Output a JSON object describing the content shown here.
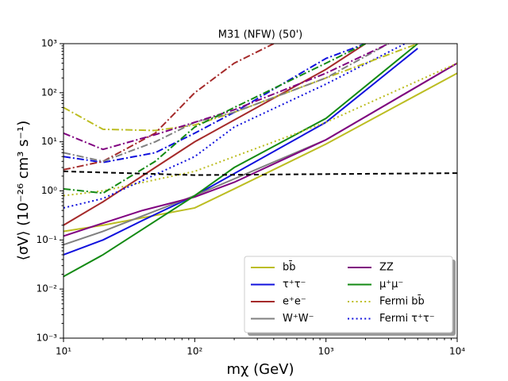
{
  "chart_data": {
    "type": "line",
    "title": "M31 (NFW) (50')",
    "x_label": "mχ (GeV)",
    "y_label": "⟨σV⟩ (10⁻²⁶ cm³ s⁻¹)",
    "xscale": "log",
    "yscale": "log",
    "xlim": [
      10,
      10000
    ],
    "ylim": [
      0.001,
      1000
    ],
    "xticks": [
      {
        "value": 10,
        "label": "10¹"
      },
      {
        "value": 100,
        "label": "10²"
      },
      {
        "value": 1000,
        "label": "10³"
      },
      {
        "value": 10000,
        "label": "10⁴"
      }
    ],
    "yticks": [
      {
        "value": 0.001,
        "label": "10⁻³"
      },
      {
        "value": 0.01,
        "label": "10⁻²"
      },
      {
        "value": 0.1,
        "label": "10⁻¹"
      },
      {
        "value": 1,
        "label": "10⁰"
      },
      {
        "value": 10,
        "label": "10¹"
      },
      {
        "value": 100,
        "label": "10²"
      },
      {
        "value": 1000,
        "label": "10³"
      }
    ],
    "legend": "lower right",
    "series": [
      {
        "name": "bb̄",
        "color": "#bcbd22",
        "dash": "solid",
        "x": [
          10,
          20,
          100,
          200,
          1000,
          10000
        ],
        "values": [
          0.15,
          0.2,
          0.45,
          1.1,
          9,
          250
        ]
      },
      {
        "name": "τ⁺τ⁻",
        "color": "#1010dd",
        "dash": "solid",
        "x": [
          10,
          20,
          40,
          100,
          1000,
          5000
        ],
        "values": [
          0.05,
          0.1,
          0.25,
          0.8,
          25,
          800
        ]
      },
      {
        "name": "e⁺e⁻",
        "color": "#a52a2a",
        "dash": "solid",
        "x": [
          10,
          20,
          50,
          100,
          1000,
          2000
        ],
        "values": [
          0.2,
          0.6,
          3,
          10,
          300,
          1000
        ]
      },
      {
        "name": "W⁺W⁻",
        "color": "#808080",
        "dash": "solid",
        "x": [
          10,
          20,
          100,
          1000,
          10000
        ],
        "values": [
          0.08,
          0.15,
          0.8,
          11,
          400
        ]
      },
      {
        "name": "ZZ",
        "color": "#800080",
        "dash": "solid",
        "x": [
          10,
          20,
          40,
          100,
          200,
          1000,
          10000
        ],
        "values": [
          0.12,
          0.22,
          0.4,
          0.75,
          1.5,
          11,
          400
        ]
      },
      {
        "name": "μ⁺μ⁻",
        "color": "#138a13",
        "dash": "solid",
        "x": [
          10,
          20,
          100,
          200,
          1000,
          5000
        ],
        "values": [
          0.018,
          0.05,
          0.8,
          3,
          30,
          1000
        ]
      },
      {
        "name": "Fermi bb̄",
        "color": "#bcbd22",
        "dash": "dotted",
        "x": [
          10,
          20,
          100,
          200,
          1000,
          10000
        ],
        "values": [
          0.8,
          1,
          2.5,
          5,
          25,
          400
        ]
      },
      {
        "name": "Fermi τ⁺τ⁻",
        "color": "#1010dd",
        "dash": "dotted",
        "x": [
          10,
          20,
          100,
          200,
          1000,
          4000
        ],
        "values": [
          0.45,
          0.7,
          5,
          20,
          150,
          1000
        ]
      },
      {
        "color": "#bcbd22",
        "dash": "dashdot",
        "x": [
          10,
          20,
          50,
          100,
          200,
          1000,
          5000
        ],
        "values": [
          50,
          18,
          17,
          22,
          40,
          200,
          1000
        ]
      },
      {
        "color": "#1010dd",
        "dash": "dashdot",
        "x": [
          10,
          20,
          50,
          100,
          200,
          1000,
          2000
        ],
        "values": [
          5,
          3.8,
          6,
          15,
          40,
          500,
          1000
        ]
      },
      {
        "color": "#a52a2a",
        "dash": "dashdot",
        "x": [
          10,
          20,
          50,
          100,
          200,
          400
        ],
        "values": [
          2.7,
          4,
          15,
          100,
          400,
          1000
        ]
      },
      {
        "color": "#808080",
        "dash": "dashdot",
        "x": [
          10,
          20,
          50,
          100,
          200,
          1000,
          3000
        ],
        "values": [
          6,
          4,
          10,
          25,
          40,
          200,
          1000
        ]
      },
      {
        "color": "#800080",
        "dash": "dashdot",
        "x": [
          10,
          20,
          50,
          100,
          200,
          1000,
          3000
        ],
        "values": [
          15,
          7,
          14,
          25,
          45,
          250,
          1000
        ]
      },
      {
        "color": "#138a13",
        "dash": "dashdot",
        "x": [
          10,
          20,
          50,
          100,
          200,
          1000,
          2000
        ],
        "values": [
          1.1,
          0.9,
          4,
          20,
          50,
          400,
          1000
        ]
      },
      {
        "color": "#000000",
        "dash": "dashed",
        "x": [
          10,
          100,
          1000,
          10000
        ],
        "values": [
          2.5,
          2.1,
          2.2,
          2.3
        ]
      }
    ]
  }
}
